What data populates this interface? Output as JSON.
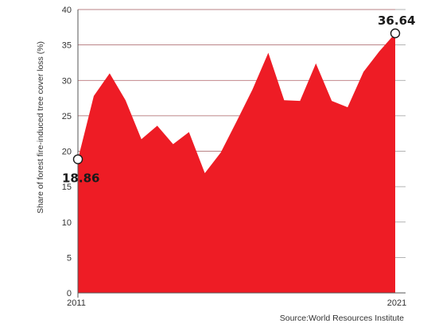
{
  "chart_data": {
    "type": "area",
    "title": "",
    "ylabel": "Share of forest fire-induced tree cover  loss (%)",
    "xlabel": "",
    "ylim": [
      0,
      40
    ],
    "yticks": [
      "0",
      "5",
      "10",
      "15",
      "20",
      "25",
      "30",
      "35",
      "40"
    ],
    "x_tick_labels": [
      "2011",
      "2021"
    ],
    "grid": "horizontal",
    "fill_color": "#ee1c25",
    "series": [
      {
        "values": [
          18.86,
          27.8,
          31.0,
          27.2,
          21.7,
          23.6,
          21.0,
          22.7,
          16.9,
          19.8,
          24.2,
          28.7,
          33.9,
          27.2,
          27.1,
          32.4,
          27.1,
          26.2,
          31.2,
          34.1,
          36.64
        ]
      }
    ],
    "annotations": [
      {
        "label": "18.86",
        "value": 18.86,
        "index": 0
      },
      {
        "label": "36.64",
        "value": 36.64,
        "index": 20
      }
    ],
    "source": "Source:World Resources Institute"
  }
}
